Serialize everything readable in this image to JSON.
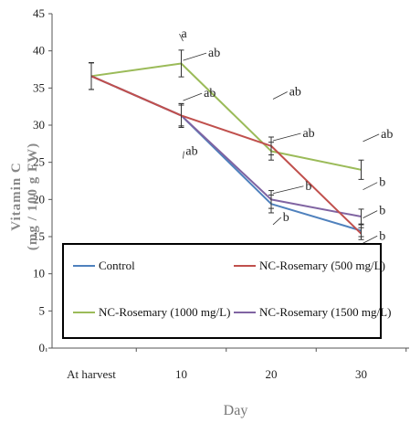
{
  "chart_data": {
    "type": "line",
    "title": "",
    "xlabel": "Day",
    "ylabel_line1": "Vitamin C",
    "ylabel_line2": "(mg / 100 g FW)",
    "categories": [
      "At harvest",
      "10",
      "20",
      "30"
    ],
    "ylim": [
      0,
      45
    ],
    "yticks": [
      0,
      5,
      10,
      15,
      20,
      25,
      30,
      35,
      40,
      45
    ],
    "grid": false,
    "legend_position": "inside-lower-center",
    "series": [
      {
        "name": "Control",
        "color": "#4f81bd",
        "values": [
          36.6,
          31.3,
          19.4,
          15.8
        ],
        "errors": [
          1.8,
          1.4,
          1.2,
          0.8
        ]
      },
      {
        "name": "NC-Rosemary (500 mg/L)",
        "color": "#c0504d",
        "values": [
          36.6,
          31.3,
          27.2,
          15.4
        ],
        "errors": [
          1.8,
          1.6,
          1.2,
          0.8
        ]
      },
      {
        "name": "NC-Rosemary (1000 mg/L)",
        "color": "#9bbb59",
        "values": [
          36.6,
          38.3,
          26.5,
          24.0
        ],
        "errors": [
          1.8,
          1.8,
          1.2,
          1.3
        ]
      },
      {
        "name": "NC-Rosemary (1500 mg/L)",
        "color": "#8064a2",
        "values": [
          36.6,
          31.3,
          20.0,
          17.7
        ],
        "errors": [
          1.8,
          1.6,
          1.2,
          1.0
        ]
      }
    ],
    "annotations": [
      {
        "text": "a",
        "x": 1,
        "y": 41.8
      },
      {
        "text": "ab",
        "x": 1.3,
        "y": 39.2
      },
      {
        "text": "ab",
        "x": 1.25,
        "y": 33.8
      },
      {
        "text": "ab",
        "x": 1.05,
        "y": 26.0
      },
      {
        "text": "ab",
        "x": 2.2,
        "y": 34.0
      },
      {
        "text": "ab",
        "x": 2.35,
        "y": 28.4
      },
      {
        "text": "b",
        "x": 2.13,
        "y": 17.1
      },
      {
        "text": "b",
        "x": 2.38,
        "y": 21.3
      },
      {
        "text": "ab",
        "x": 3.22,
        "y": 28.3
      },
      {
        "text": "b",
        "x": 3.2,
        "y": 21.8
      },
      {
        "text": "b",
        "x": 3.2,
        "y": 18.0
      },
      {
        "text": "b",
        "x": 3.2,
        "y": 14.6
      }
    ]
  }
}
